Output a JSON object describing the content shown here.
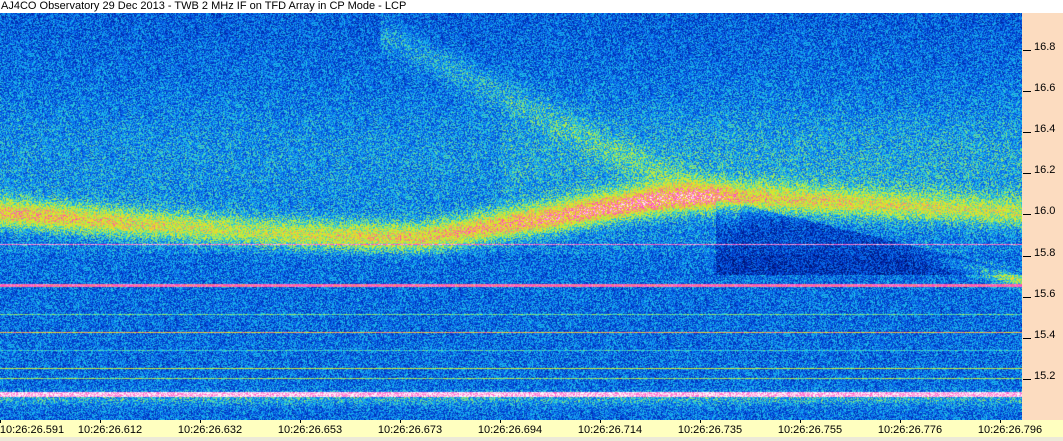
{
  "window": {
    "title": "AJ4CO Observatory 29 Dec 2013 - TWB 2 MHz IF on TFD Array in CP Mode - LCP"
  },
  "chart_data": {
    "type": "heatmap",
    "title": "AJ4CO Observatory 29 Dec 2013 - TWB 2 MHz IF on TFD Array in CP Mode - LCP",
    "xlabel": "",
    "ylabel": "",
    "x_tick_labels": [
      "10:26:26.591",
      "10:26:26.612",
      "10:26:26.632",
      "10:26:26.653",
      "10:26:26.673",
      "10:26:26.694",
      "10:26:26.714",
      "10:26:26.735",
      "10:26:26.755",
      "10:26:26.776",
      "10:26:26.796"
    ],
    "y_ticks": [
      15.2,
      15.4,
      15.6,
      15.8,
      16.0,
      16.2,
      16.4,
      16.6,
      16.8
    ],
    "y_tick_labels": [
      "15.2",
      "15.4",
      "15.6",
      "15.8",
      "16.0",
      "16.2",
      "16.4",
      "16.6",
      "16.8"
    ],
    "ylim": [
      15.0,
      16.98
    ],
    "y_axis_position": "right",
    "grid": false,
    "colormap": [
      "#00106a",
      "#0030c0",
      "#0a70f0",
      "#20c8e8",
      "#b8f040",
      "#f0e020",
      "#ff40c0",
      "#ffffff"
    ]
  }
}
